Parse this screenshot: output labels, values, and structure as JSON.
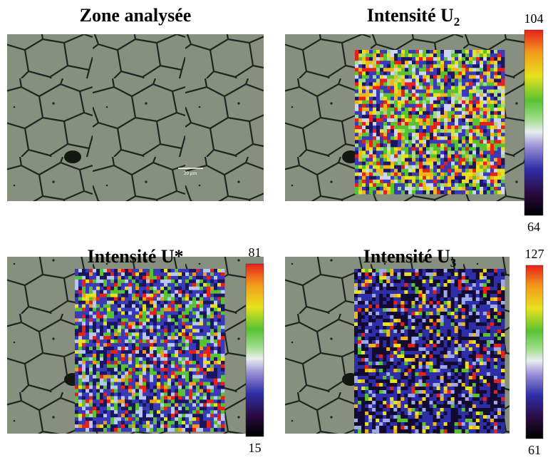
{
  "panels": [
    {
      "title": "Zone analysée",
      "scale_bar": "20 µm"
    },
    {
      "title": "Intensité U",
      "subscript": "2",
      "colorbar": {
        "max": 104,
        "min": 64
      }
    },
    {
      "title": "Intensité U*",
      "colorbar": {
        "max": 81,
        "min": 15
      }
    },
    {
      "title": "Intensité U",
      "subscript": "3",
      "colorbar": {
        "max": 127,
        "min": 61
      }
    }
  ]
}
